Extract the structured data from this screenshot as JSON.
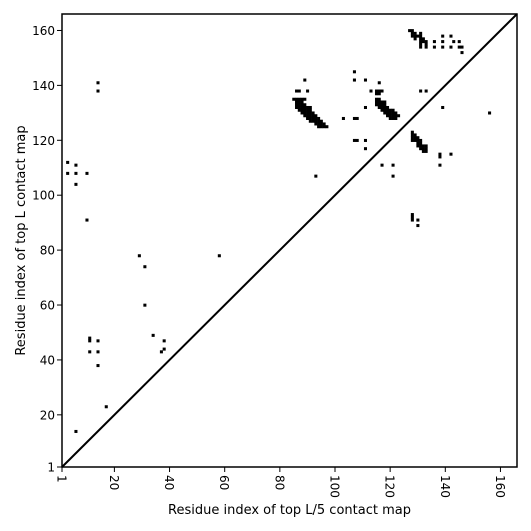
{
  "chart_data": {
    "type": "scatter",
    "title": "",
    "xlabel": "Residue index of top L/5 contact map",
    "ylabel": "Residue index of top L contact map",
    "xlim": [
      1,
      166
    ],
    "ylim": [
      1,
      166
    ],
    "x_ticks": [
      "1",
      "20",
      "40",
      "60",
      "80",
      "100",
      "120",
      "140",
      "160"
    ],
    "y_ticks": [
      "1",
      "20",
      "40",
      "60",
      "80",
      "100",
      "120",
      "140",
      "160"
    ],
    "x_tick_rotation": -90,
    "grid": false,
    "legend": "none",
    "marker_color": "#000000",
    "diagonal_line": true,
    "series": [
      {
        "name": "",
        "points": [
          [
            3,
            112
          ],
          [
            3,
            108
          ],
          [
            6,
            111
          ],
          [
            6,
            108
          ],
          [
            6,
            104
          ],
          [
            10,
            108
          ],
          [
            10,
            91
          ],
          [
            14,
            141
          ],
          [
            14,
            138
          ],
          [
            11,
            48
          ],
          [
            11,
            47
          ],
          [
            14,
            47
          ],
          [
            11,
            43
          ],
          [
            14,
            43
          ],
          [
            14,
            38
          ],
          [
            17,
            23
          ],
          [
            6,
            14
          ],
          [
            29,
            78
          ],
          [
            31,
            74
          ],
          [
            31,
            60
          ],
          [
            34,
            49
          ],
          [
            38,
            47
          ],
          [
            38,
            44
          ],
          [
            37,
            43
          ],
          [
            58,
            78
          ],
          [
            93,
            107
          ],
          [
            156,
            130
          ],
          [
            107,
            145
          ],
          [
            107,
            142
          ],
          [
            111,
            142
          ],
          [
            116,
            141
          ],
          [
            113,
            138
          ],
          [
            89,
            142
          ],
          [
            86,
            138
          ],
          [
            87,
            138
          ],
          [
            90,
            138
          ],
          [
            85,
            135
          ],
          [
            86,
            135
          ],
          [
            87,
            135
          ],
          [
            88,
            135
          ],
          [
            89,
            135
          ],
          [
            86,
            134
          ],
          [
            87,
            134
          ],
          [
            88,
            134
          ],
          [
            86,
            133
          ],
          [
            87,
            133
          ],
          [
            88,
            133
          ],
          [
            89,
            133
          ],
          [
            86,
            132
          ],
          [
            87,
            132
          ],
          [
            88,
            132
          ],
          [
            89,
            132
          ],
          [
            90,
            132
          ],
          [
            91,
            132
          ],
          [
            87,
            131
          ],
          [
            88,
            131
          ],
          [
            89,
            131
          ],
          [
            90,
            131
          ],
          [
            91,
            131
          ],
          [
            88,
            130
          ],
          [
            89,
            130
          ],
          [
            90,
            130
          ],
          [
            91,
            130
          ],
          [
            92,
            130
          ],
          [
            89,
            129
          ],
          [
            90,
            129
          ],
          [
            91,
            129
          ],
          [
            92,
            129
          ],
          [
            93,
            129
          ],
          [
            90,
            128
          ],
          [
            91,
            128
          ],
          [
            92,
            128
          ],
          [
            93,
            128
          ],
          [
            94,
            128
          ],
          [
            91,
            127
          ],
          [
            92,
            127
          ],
          [
            93,
            127
          ],
          [
            94,
            127
          ],
          [
            95,
            127
          ],
          [
            93,
            126
          ],
          [
            94,
            126
          ],
          [
            95,
            126
          ],
          [
            96,
            126
          ],
          [
            94,
            125
          ],
          [
            95,
            125
          ],
          [
            96,
            125
          ],
          [
            97,
            125
          ],
          [
            103,
            128
          ],
          [
            107,
            128
          ],
          [
            108,
            128
          ],
          [
            107,
            120
          ],
          [
            108,
            120
          ],
          [
            111,
            120
          ],
          [
            111,
            117
          ],
          [
            111,
            132
          ],
          [
            115,
            138
          ],
          [
            116,
            138
          ],
          [
            117,
            138
          ],
          [
            115,
            137
          ],
          [
            116,
            137
          ],
          [
            115,
            135
          ],
          [
            116,
            135
          ],
          [
            115,
            134
          ],
          [
            116,
            134
          ],
          [
            117,
            134
          ],
          [
            118,
            134
          ],
          [
            115,
            133
          ],
          [
            116,
            133
          ],
          [
            117,
            133
          ],
          [
            118,
            133
          ],
          [
            116,
            132
          ],
          [
            117,
            132
          ],
          [
            118,
            132
          ],
          [
            119,
            132
          ],
          [
            117,
            131
          ],
          [
            118,
            131
          ],
          [
            119,
            131
          ],
          [
            120,
            131
          ],
          [
            121,
            131
          ],
          [
            118,
            130
          ],
          [
            119,
            130
          ],
          [
            120,
            130
          ],
          [
            121,
            130
          ],
          [
            122,
            130
          ],
          [
            119,
            129
          ],
          [
            120,
            129
          ],
          [
            121,
            129
          ],
          [
            122,
            129
          ],
          [
            123,
            129
          ],
          [
            120,
            128
          ],
          [
            121,
            128
          ],
          [
            122,
            128
          ],
          [
            117,
            111
          ],
          [
            121,
            111
          ],
          [
            121,
            107
          ],
          [
            128,
            123
          ],
          [
            128,
            122
          ],
          [
            129,
            122
          ],
          [
            128,
            121
          ],
          [
            129,
            121
          ],
          [
            130,
            121
          ],
          [
            128,
            120
          ],
          [
            129,
            120
          ],
          [
            130,
            120
          ],
          [
            131,
            120
          ],
          [
            130,
            119
          ],
          [
            131,
            119
          ],
          [
            130,
            118
          ],
          [
            131,
            118
          ],
          [
            132,
            118
          ],
          [
            133,
            118
          ],
          [
            131,
            117
          ],
          [
            132,
            117
          ],
          [
            133,
            117
          ],
          [
            132,
            116
          ],
          [
            133,
            116
          ],
          [
            128,
            93
          ],
          [
            128,
            92
          ],
          [
            128,
            91
          ],
          [
            130,
            91
          ],
          [
            130,
            89
          ],
          [
            138,
            115
          ],
          [
            138,
            114
          ],
          [
            142,
            115
          ],
          [
            138,
            111
          ],
          [
            131,
            138
          ],
          [
            133,
            138
          ],
          [
            139,
            132
          ],
          [
            127,
            160
          ],
          [
            128,
            160
          ],
          [
            128,
            159
          ],
          [
            129,
            159
          ],
          [
            131,
            159
          ],
          [
            128,
            158
          ],
          [
            129,
            158
          ],
          [
            130,
            158
          ],
          [
            131,
            158
          ],
          [
            129,
            157
          ],
          [
            131,
            157
          ],
          [
            132,
            157
          ],
          [
            131,
            156
          ],
          [
            132,
            156
          ],
          [
            133,
            156
          ],
          [
            131,
            155
          ],
          [
            133,
            155
          ],
          [
            131,
            154
          ],
          [
            133,
            154
          ],
          [
            136,
            156
          ],
          [
            136,
            154
          ],
          [
            139,
            158
          ],
          [
            139,
            156
          ],
          [
            139,
            154
          ],
          [
            142,
            158
          ],
          [
            143,
            156
          ],
          [
            142,
            154
          ],
          [
            145,
            156
          ],
          [
            145,
            154
          ],
          [
            146,
            154
          ],
          [
            146,
            152
          ]
        ]
      }
    ]
  }
}
